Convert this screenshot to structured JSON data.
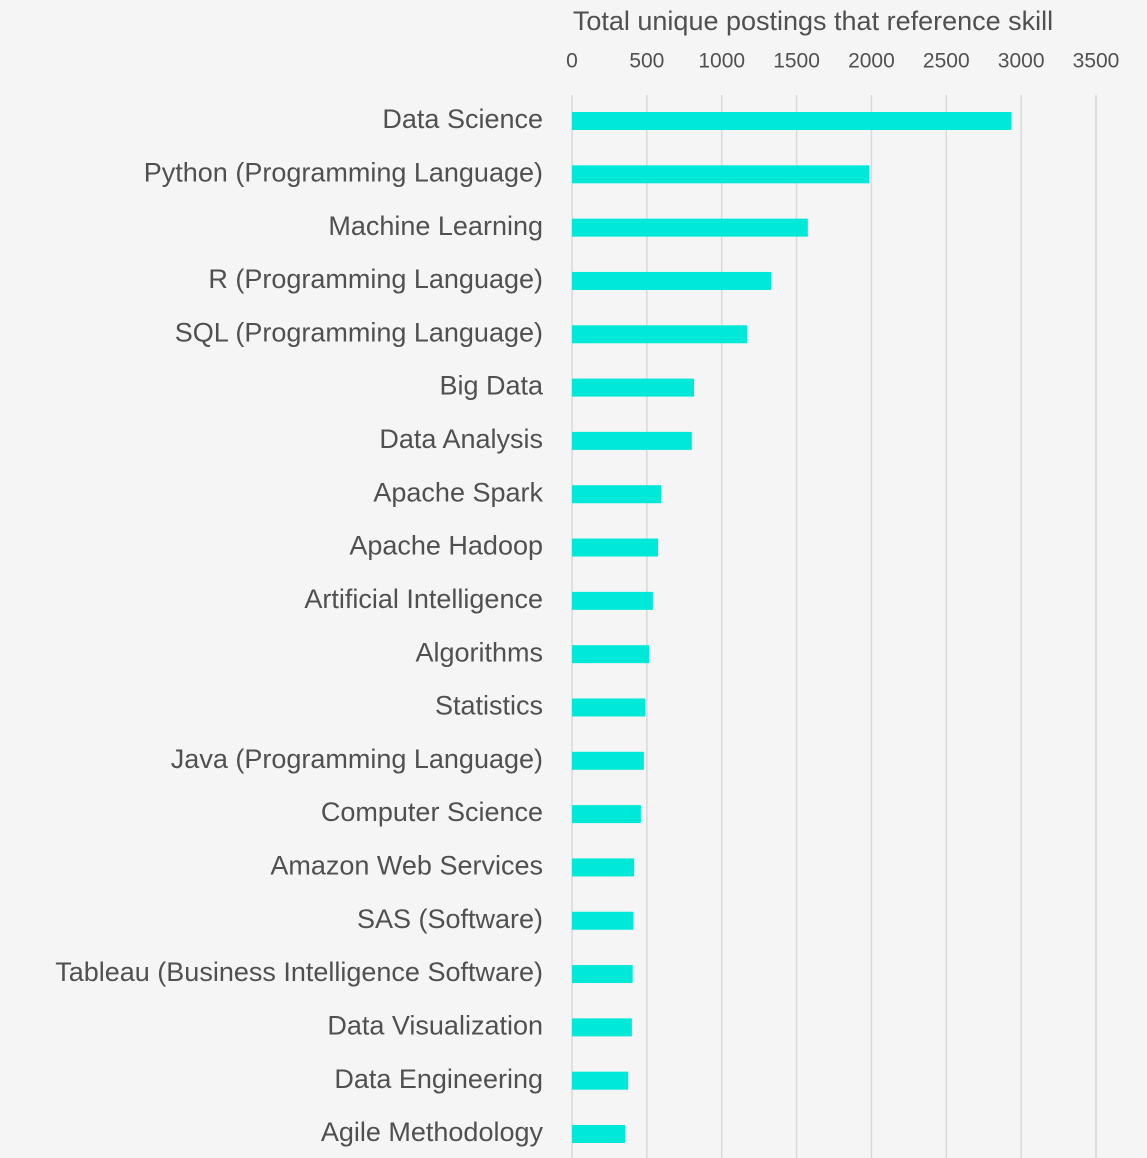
{
  "chart_data": {
    "type": "barh",
    "title": "Total unique postings that reference skill",
    "categories": [
      "Data Science",
      "Python (Programming Language)",
      "Machine Learning",
      "R (Programming Language)",
      "SQL (Programming Language)",
      "Big Data",
      "Data Analysis",
      "Apache Spark",
      "Apache Hadoop",
      "Artificial Intelligence",
      "Algorithms",
      "Statistics",
      "Java (Programming Language)",
      "Computer Science",
      "Amazon Web Services",
      "SAS (Software)",
      "Tableau (Business Intelligence Software)",
      "Data Visualization",
      "Data Engineering",
      "Agile Methodology"
    ],
    "values": [
      2935,
      1985,
      1575,
      1330,
      1170,
      815,
      800,
      595,
      575,
      540,
      515,
      490,
      480,
      460,
      415,
      410,
      405,
      400,
      375,
      355
    ],
    "color": "#00e8d8",
    "xlim": [
      0,
      3500
    ],
    "xticks": [
      0,
      500,
      1000,
      1500,
      2000,
      2500,
      3000,
      3500
    ],
    "grid": true
  }
}
